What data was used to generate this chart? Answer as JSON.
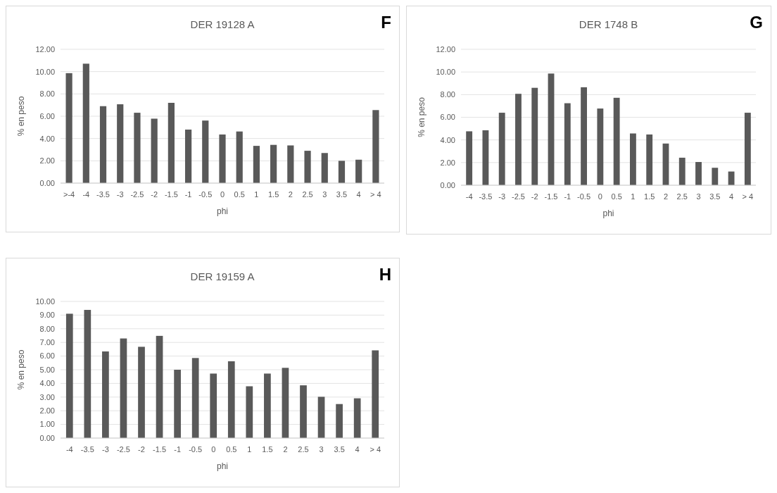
{
  "chart_data": [
    {
      "type": "bar",
      "title": "DER 19128 A",
      "xlabel": "phi",
      "ylabel": "% en peso",
      "annotations": [
        "F"
      ],
      "color": "#595959",
      "grid": "y",
      "categories": [
        ">-4",
        "-4",
        "-3.5",
        "-3",
        "-2.5",
        "-2",
        "-1.5",
        "-1",
        "-0.5",
        "0",
        "0.5",
        "1",
        "1.5",
        "2",
        "2.5",
        "3",
        "3.5",
        "4",
        "> 4"
      ],
      "values": [
        9.86,
        10.71,
        6.9,
        7.07,
        6.31,
        5.78,
        7.2,
        4.8,
        5.61,
        4.36,
        4.63,
        3.34,
        3.43,
        3.38,
        2.9,
        2.7,
        2.0,
        2.1,
        6.55
      ],
      "ylim": [
        0,
        12
      ],
      "yticks": [
        {
          "value": 0,
          "label": "0.00"
        },
        {
          "value": 2,
          "label": "2.00"
        },
        {
          "value": 4,
          "label": "4.00"
        },
        {
          "value": 6,
          "label": "6.00"
        },
        {
          "value": 8,
          "label": "8.00"
        },
        {
          "value": 10,
          "label": "10.00"
        },
        {
          "value": 12,
          "label": "12.00"
        }
      ]
    },
    {
      "type": "bar",
      "title": "DER 1748 B",
      "xlabel": "phi",
      "ylabel": "% en peso",
      "annotations": [
        "G"
      ],
      "color": "#595959",
      "grid": "y",
      "categories": [
        "-4",
        "-3.5",
        "-3",
        "-2.5",
        "-2",
        "-1.5",
        "-1",
        "-0.5",
        "0",
        "0.5",
        "1",
        "1.5",
        "2",
        "2.5",
        "3",
        "3.5",
        "4",
        "> 4"
      ],
      "values": [
        4.76,
        4.85,
        6.4,
        8.07,
        8.6,
        9.86,
        7.24,
        8.65,
        6.77,
        7.72,
        4.57,
        4.48,
        3.68,
        2.43,
        2.05,
        1.54,
        1.21,
        6.4
      ],
      "ylim": [
        0,
        12
      ],
      "yticks": [
        {
          "value": 0,
          "label": "0.00"
        },
        {
          "value": 2,
          "label": "2.00"
        },
        {
          "value": 4,
          "label": "4.00"
        },
        {
          "value": 6,
          "label": "6.00"
        },
        {
          "value": 8,
          "label": "8.00"
        },
        {
          "value": 10,
          "label": "10.00"
        },
        {
          "value": 12,
          "label": "12.00"
        }
      ]
    },
    {
      "type": "bar",
      "title": "DER 19159 A",
      "xlabel": "phi",
      "ylabel": "% en peso",
      "annotations": [
        "H"
      ],
      "color": "#595959",
      "grid": "y",
      "categories": [
        "-4",
        "-3.5",
        "-3",
        "-2.5",
        "-2",
        "-1.5",
        "-1",
        "-0.5",
        "0",
        "0.5",
        "1",
        "1.5",
        "2",
        "2.5",
        "3",
        "3.5",
        "4",
        "> 4"
      ],
      "values": [
        9.1,
        9.38,
        6.34,
        7.29,
        6.68,
        7.48,
        5.0,
        5.86,
        4.72,
        5.62,
        3.79,
        4.72,
        5.14,
        3.86,
        3.02,
        2.49,
        2.91,
        6.42
      ],
      "ylim": [
        0,
        10
      ],
      "yticks": [
        {
          "value": 0,
          "label": "0.00"
        },
        {
          "value": 1,
          "label": "1.00"
        },
        {
          "value": 2,
          "label": "2.00"
        },
        {
          "value": 3,
          "label": "3.00"
        },
        {
          "value": 4,
          "label": "4.00"
        },
        {
          "value": 5,
          "label": "5.00"
        },
        {
          "value": 6,
          "label": "6.00"
        },
        {
          "value": 7,
          "label": "7.00"
        },
        {
          "value": 8,
          "label": "8.00"
        },
        {
          "value": 9,
          "label": "9.00"
        },
        {
          "value": 10,
          "label": "10.00"
        }
      ]
    }
  ]
}
